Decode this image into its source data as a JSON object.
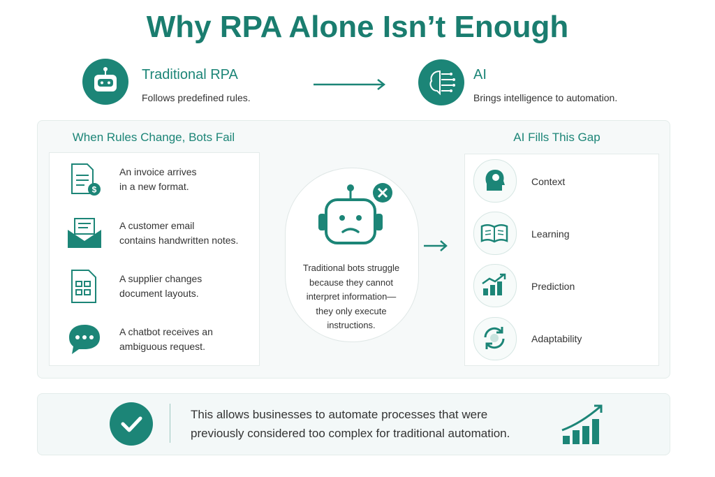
{
  "title": "Why RPA Alone Isn’t Enough",
  "header": {
    "left": {
      "title": "Traditional RPA",
      "description": "Follows predefined rules."
    },
    "right": {
      "title": "AI",
      "description": "Brings intelligence to automation."
    }
  },
  "left_panel": {
    "title": "When Rules Change, Bots Fail",
    "items": [
      {
        "lines": [
          "An invoice arrives",
          "in a new format."
        ]
      },
      {
        "lines": [
          "A customer email",
          "contains handwritten notes."
        ]
      },
      {
        "lines": [
          "A supplier changes",
          "document layouts."
        ]
      },
      {
        "lines": [
          "A chatbot receives an",
          "ambiguous request."
        ]
      }
    ]
  },
  "center": {
    "lines": [
      "Traditional bots struggle",
      "because they cannot",
      "interpret information—",
      "they only execute",
      "instructions."
    ]
  },
  "right_panel": {
    "title": "AI Fills This Gap",
    "items": [
      "Context",
      "Learning",
      "Prediction",
      "Adaptability"
    ]
  },
  "footer": {
    "lines": [
      "This allows businesses to automate processes that were",
      "previously considered too complex for traditional automation."
    ]
  }
}
